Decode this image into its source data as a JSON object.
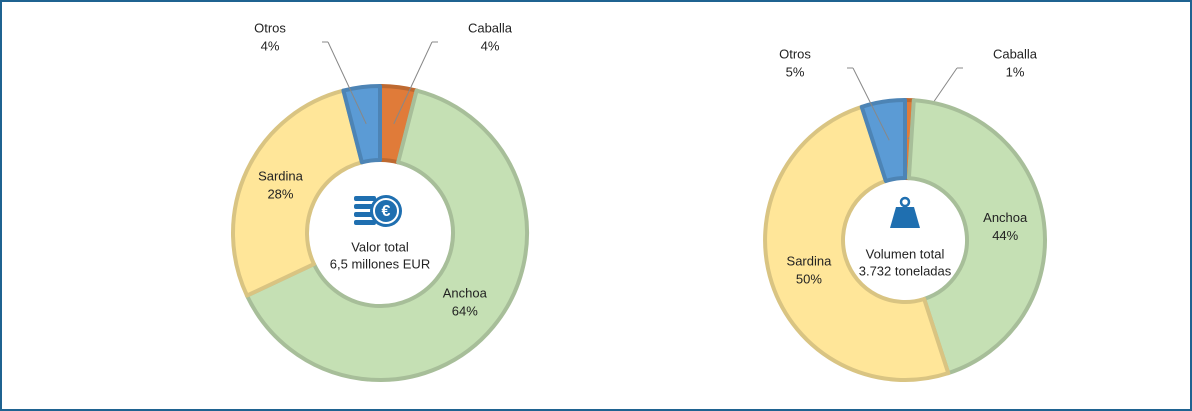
{
  "chart_data": [
    {
      "type": "donut",
      "categories": [
        "Caballa",
        "Anchoa",
        "Sardina",
        "Otros"
      ],
      "values": [
        4,
        64,
        28,
        4
      ],
      "value_labels": [
        "4%",
        "64%",
        "28%",
        "4%"
      ],
      "colors": [
        "#e07b39",
        "#c5e0b4",
        "#ffe699",
        "#5b9bd5"
      ],
      "center_text": [
        "Valor total",
        "6,5 millones EUR"
      ]
    },
    {
      "type": "donut",
      "categories": [
        "Caballa",
        "Anchoa",
        "Sardina",
        "Otros"
      ],
      "values": [
        1,
        44,
        50,
        5
      ],
      "value_labels": [
        "1%",
        "44%",
        "50%",
        "5%"
      ],
      "colors": [
        "#e07b39",
        "#c5e0b4",
        "#ffe699",
        "#5b9bd5"
      ],
      "center_text": [
        "Volumen total",
        "3.732 toneladas"
      ]
    }
  ]
}
